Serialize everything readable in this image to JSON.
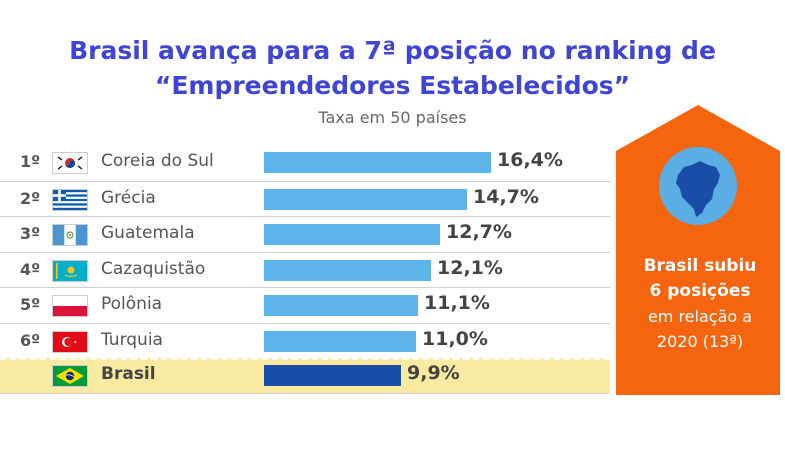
{
  "header": {
    "title_line1": "Brasil avança para a 7ª posição no ranking de",
    "title_line2": "“Empreendedores Estabelecidos”",
    "subtitle": "Taxa em 50 países"
  },
  "callout": {
    "line1": "Brasil subiu",
    "line2": "6 posições",
    "line3": "em relação a",
    "line4": "2020 (13ª)",
    "colors": {
      "box": "#f5640f",
      "circle": "#5aaee3",
      "map": "#1a4da8"
    },
    "icon": "brazil-map-icon"
  },
  "colors": {
    "bar": "#5db4ea",
    "bar_highlight": "#1a4da8",
    "title": "#3f43d6",
    "highlight_row": "#fbeaa2"
  },
  "chart_data": {
    "type": "bar",
    "orientation": "horizontal",
    "title": "Brasil avança para a 7ª posição no ranking de “Empreendedores Estabelecidos”",
    "subtitle": "Taxa em 50 países",
    "xlabel": "",
    "ylabel": "",
    "xlim": [
      0,
      16.4
    ],
    "grid": false,
    "rows": [
      {
        "rank": "1º",
        "country": "Coreia do Sul",
        "value": 16.4,
        "label": "16,4%",
        "flag": "south-korea-flag-icon"
      },
      {
        "rank": "2º",
        "country": "Grécia",
        "value": 14.7,
        "label": "14,7%",
        "flag": "greece-flag-icon"
      },
      {
        "rank": "3º",
        "country": "Guatemala",
        "value": 12.7,
        "label": "12,7%",
        "flag": "guatemala-flag-icon"
      },
      {
        "rank": "4º",
        "country": "Cazaquistão",
        "value": 12.1,
        "label": "12,1%",
        "flag": "kazakhstan-flag-icon"
      },
      {
        "rank": "5º",
        "country": "Polônia",
        "value": 11.1,
        "label": "11,1%",
        "flag": "poland-flag-icon"
      },
      {
        "rank": "6º",
        "country": "Turquia",
        "value": 11.0,
        "label": "11,0%",
        "flag": "turkey-flag-icon"
      },
      {
        "rank": "",
        "country": "Brasil",
        "value": 9.9,
        "label": "9,9%",
        "flag": "brazil-flag-icon",
        "highlight": true
      }
    ]
  }
}
